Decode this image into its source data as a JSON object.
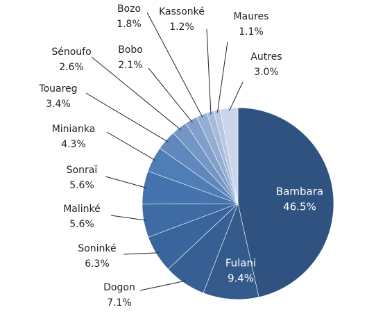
{
  "chart_data": {
    "type": "pie",
    "categories": [
      "Bambara",
      "Fulani",
      "Dogon",
      "Soninké",
      "Malinké",
      "Sonraï",
      "Minianka",
      "Touareg",
      "Sénoufo",
      "Bobo",
      "Bozo",
      "Kassonké",
      "Maures",
      "Autres"
    ],
    "values": [
      46.5,
      9.4,
      7.1,
      6.3,
      5.6,
      5.6,
      4.3,
      3.4,
      2.6,
      2.1,
      1.8,
      1.2,
      1.1,
      3.0
    ],
    "value_labels": [
      "46.5%",
      "9.4%",
      "7.1%",
      "6.3%",
      "5.6%",
      "5.6%",
      "4.3%",
      "3.4%",
      "2.6%",
      "2.1%",
      "1.8%",
      "1.2%",
      "1.1%",
      "3.0%"
    ],
    "colors": [
      "#2f5280",
      "#345a8c",
      "#375f94",
      "#3a659c",
      "#3e6ba4",
      "#4573ad",
      "#4f7db6",
      "#6088bd",
      "#7396c5",
      "#829fcb",
      "#94aed3",
      "#a6bbda",
      "#b8c8e2",
      "#ccd6ea"
    ]
  }
}
